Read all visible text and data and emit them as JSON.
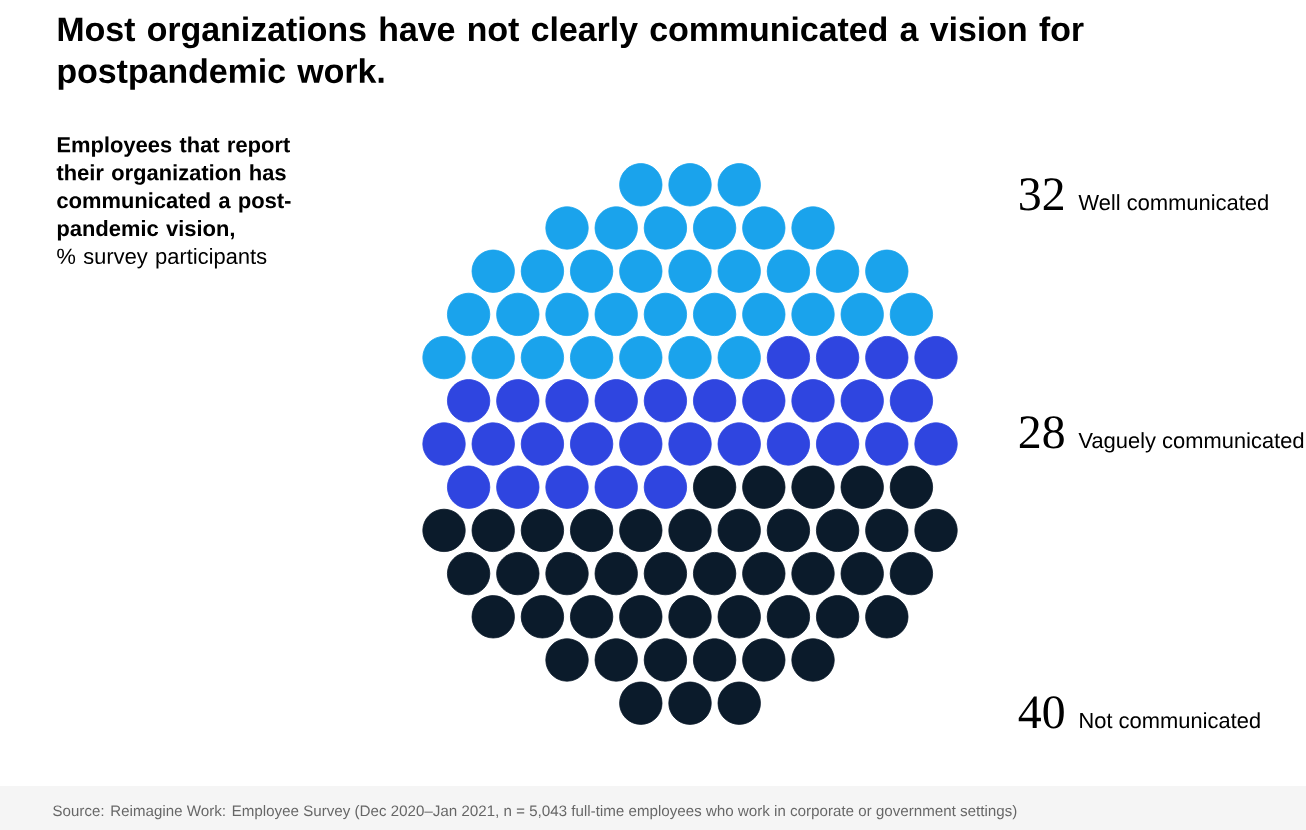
{
  "chart_data": {
    "type": "other",
    "title": "Most organizations have not clearly communicated a vision for postpandemic work.",
    "subtitle": "Employees that report their organization has communicated a post-pandemic vision,",
    "ylabel": "% survey participants",
    "categories": [
      "Well communicated",
      "Vaguely communicated",
      "Not communicated"
    ],
    "values": [
      32,
      28,
      40
    ],
    "colors": [
      "#1aa3ec",
      "#2f45e0",
      "#0b1b2b"
    ],
    "data_labels": true,
    "annotations": [
      "Source: Reimagine Work: Employee Survey (Dec 2020–Jan 2021, n = 5,043 full-time employees who work in corporate or government settings)"
    ]
  }
}
